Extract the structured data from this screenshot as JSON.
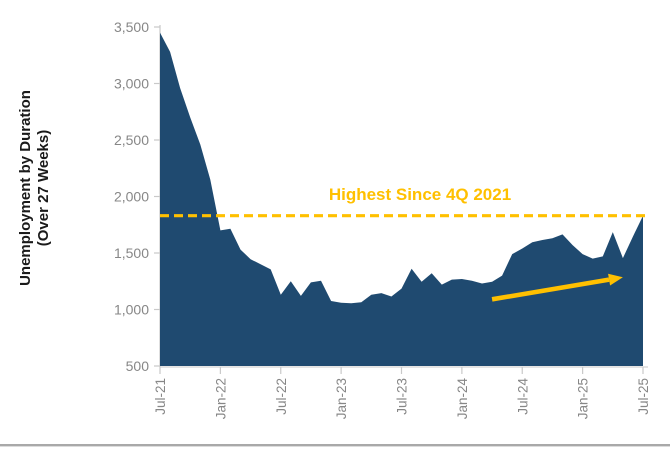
{
  "colors": {
    "area_fill": "#1F4A70",
    "gold": "#FFC000",
    "axis_line": "#c9c9c9",
    "tick_label": "#878787",
    "axis_title": "#1a1a1a",
    "bottom_divider": "#a9a9a9"
  },
  "chart_data": {
    "type": "area",
    "title": "",
    "ylabel_line1": "Unemployment by Duration",
    "ylabel_line2": "(Over 27 Weeks)",
    "xlabel": "",
    "ylim": [
      500,
      3500
    ],
    "ytick_interval": 500,
    "ytick_labels": [
      "500",
      "1,000",
      "1,500",
      "2,000",
      "2,500",
      "3,000",
      "3,500"
    ],
    "xtick_labels": [
      "Jul-21",
      "Jan-22",
      "Jul-22",
      "Jan-23",
      "Jul-23",
      "Jan-24",
      "Jul-24",
      "Jan-25",
      "Jul-25"
    ],
    "xtick_month_step": 6,
    "grid": false,
    "legend": false,
    "months": [
      "Jul-21",
      "Aug-21",
      "Sep-21",
      "Oct-21",
      "Nov-21",
      "Dec-21",
      "Jan-22",
      "Feb-22",
      "Mar-22",
      "Apr-22",
      "May-22",
      "Jun-22",
      "Jul-22",
      "Aug-22",
      "Sep-22",
      "Oct-22",
      "Nov-22",
      "Dec-22",
      "Jan-23",
      "Feb-23",
      "Mar-23",
      "Apr-23",
      "May-23",
      "Jun-23",
      "Jul-23",
      "Aug-23",
      "Sep-23",
      "Oct-23",
      "Nov-23",
      "Dec-23",
      "Jan-24",
      "Feb-24",
      "Mar-24",
      "Apr-24",
      "May-24",
      "Jun-24",
      "Jul-24",
      "Aug-24",
      "Sep-24",
      "Oct-24",
      "Nov-24",
      "Dec-24",
      "Jan-25",
      "Feb-25",
      "Mar-25",
      "Apr-25",
      "May-25",
      "Jun-25",
      "Jul-25"
    ],
    "values": [
      3450,
      3280,
      2960,
      2700,
      2460,
      2150,
      1700,
      1715,
      1530,
      1445,
      1400,
      1355,
      1130,
      1250,
      1120,
      1240,
      1255,
      1075,
      1060,
      1055,
      1065,
      1130,
      1145,
      1115,
      1185,
      1360,
      1245,
      1320,
      1220,
      1265,
      1270,
      1255,
      1230,
      1245,
      1300,
      1490,
      1540,
      1595,
      1615,
      1630,
      1665,
      1570,
      1490,
      1450,
      1470,
      1685,
      1455,
      1645,
      1830
    ],
    "reference_line": {
      "value": 1830,
      "style": "dashed",
      "label": "Highest Since 4Q 2021"
    },
    "trend_arrow": {
      "from": {
        "month": "Apr-24",
        "value": 1090
      },
      "to": {
        "month": "May-25",
        "value": 1285
      }
    }
  }
}
